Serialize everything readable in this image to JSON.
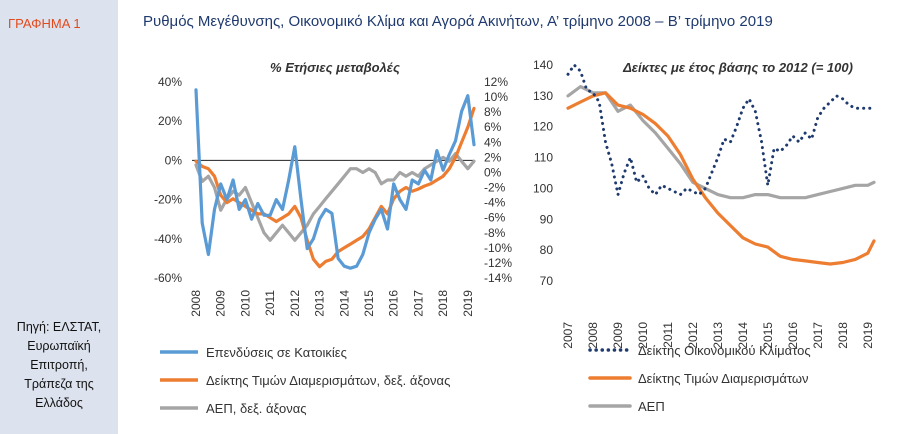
{
  "sidebar": {
    "graph_label": "ΓΡΑΦΗΜΑ 1",
    "source_lines": [
      "Πηγή: ΕΛΣΤΑΤ,",
      "Ευρωπαϊκή",
      "Επιτροπή,",
      "Τράπεζα της",
      "Ελλάδος"
    ]
  },
  "title": "Ρυθμός Μεγέθυνσης, Οικονομικό Κλίμα και Αγορά Ακινήτων, Α’ τρίμηνο 2008 – Β’ τρίμηνο 2019",
  "colors": {
    "blue": "#5b9bd5",
    "orange": "#ed7d31",
    "gray": "#a5a5a5",
    "navy": "#1f3a6e"
  },
  "chart_data": [
    {
      "type": "line",
      "title": "% Ετήσιες μεταβολές",
      "x_tick_labels": [
        "2008",
        "2009",
        "2010",
        "2011",
        "2012",
        "2013",
        "2014",
        "2015",
        "2016",
        "2017",
        "2018",
        "2019"
      ],
      "y_left": {
        "ylim": [
          -60,
          40
        ],
        "ticks": [
          40,
          20,
          0,
          -20,
          -40,
          -60
        ],
        "tick_labels": [
          "40%",
          "20%",
          "0%",
          "-20%",
          "-40%",
          "-60%"
        ]
      },
      "y_right": {
        "ylim": [
          -14,
          12
        ],
        "ticks": [
          12,
          10,
          8,
          6,
          4,
          2,
          0,
          -2,
          -4,
          -6,
          -8,
          -10,
          -12,
          -14
        ],
        "tick_labels": [
          "12%",
          "10%",
          "8%",
          "6%",
          "4%",
          "2%",
          "0%",
          "-2%",
          "-4%",
          "-6%",
          "-8%",
          "-10%",
          "-12%",
          "-14%"
        ]
      },
      "series": [
        {
          "name": "Επενδύσεις σε Κατοικίες",
          "axis": "left",
          "style": "solid",
          "color": "#5b9bd5",
          "x": [
            2008.0,
            2008.25,
            2008.5,
            2008.75,
            2009.0,
            2009.25,
            2009.5,
            2009.75,
            2010.0,
            2010.25,
            2010.5,
            2010.75,
            2011.0,
            2011.25,
            2011.5,
            2011.75,
            2012.0,
            2012.25,
            2012.5,
            2012.75,
            2013.0,
            2013.25,
            2013.5,
            2013.75,
            2014.0,
            2014.25,
            2014.5,
            2014.75,
            2015.0,
            2015.25,
            2015.5,
            2015.75,
            2016.0,
            2016.25,
            2016.5,
            2016.75,
            2017.0,
            2017.25,
            2017.5,
            2017.75,
            2018.0,
            2018.25,
            2018.5,
            2018.75,
            2019.0,
            2019.25
          ],
          "y": [
            36,
            -32,
            -48,
            -25,
            -12,
            -20,
            -10,
            -25,
            -20,
            -30,
            -22,
            -28,
            -28,
            -20,
            -25,
            -10,
            7,
            -20,
            -45,
            -40,
            -30,
            -25,
            -27,
            -50,
            -54,
            -55,
            -54,
            -48,
            -37,
            -30,
            -25,
            -35,
            -12,
            -20,
            -25,
            -10,
            -12,
            -5,
            -10,
            5,
            -5,
            3,
            10,
            25,
            33,
            8
          ]
        },
        {
          "name": "Δείκτης Τιμών Διαμερισμάτων, δεξ. άξονας",
          "axis": "right",
          "style": "solid",
          "color": "#ed7d31",
          "x": [
            2008.0,
            2008.25,
            2008.5,
            2008.75,
            2009.0,
            2009.25,
            2009.5,
            2009.75,
            2010.0,
            2010.25,
            2010.5,
            2010.75,
            2011.0,
            2011.25,
            2011.5,
            2011.75,
            2012.0,
            2012.25,
            2012.5,
            2012.75,
            2013.0,
            2013.25,
            2013.5,
            2013.75,
            2014.0,
            2014.25,
            2014.5,
            2014.75,
            2015.0,
            2015.25,
            2015.5,
            2015.75,
            2016.0,
            2016.25,
            2016.5,
            2016.75,
            2017.0,
            2017.25,
            2017.5,
            2017.75,
            2018.0,
            2018.25,
            2018.5,
            2018.75,
            2019.0,
            2019.25
          ],
          "y": [
            1.5,
            0.8,
            0.5,
            -0.5,
            -3,
            -4,
            -3.5,
            -4,
            -4.5,
            -5,
            -5.5,
            -5.5,
            -6,
            -6.5,
            -6,
            -5.5,
            -4.5,
            -6,
            -9,
            -11.5,
            -12.5,
            -11.8,
            -11.5,
            -10.5,
            -10,
            -9.5,
            -9,
            -8.5,
            -7.5,
            -6,
            -4.5,
            -5.5,
            -3.5,
            -2.5,
            -2,
            -2.5,
            -2.2,
            -1.8,
            -1.5,
            -1,
            -0.5,
            0.5,
            2,
            4,
            6,
            8.5
          ]
        },
        {
          "name": "ΑΕΠ, δεξ. άξονας",
          "axis": "right",
          "style": "solid",
          "color": "#a5a5a5",
          "x": [
            2008.0,
            2008.25,
            2008.5,
            2008.75,
            2009.0,
            2009.25,
            2009.5,
            2009.75,
            2010.0,
            2010.25,
            2010.5,
            2010.75,
            2011.0,
            2011.25,
            2011.5,
            2011.75,
            2012.0,
            2012.25,
            2012.5,
            2012.75,
            2013.0,
            2013.25,
            2013.5,
            2013.75,
            2014.0,
            2014.25,
            2014.5,
            2014.75,
            2015.0,
            2015.25,
            2015.5,
            2015.75,
            2016.0,
            2016.25,
            2016.5,
            2016.75,
            2017.0,
            2017.25,
            2017.5,
            2017.75,
            2018.0,
            2018.25,
            2018.5,
            2018.75,
            2019.0,
            2019.25
          ],
          "y": [
            1,
            -1.2,
            -0.5,
            -2,
            -5,
            -3.5,
            -2.5,
            -3,
            -2,
            -4,
            -6,
            -8,
            -9,
            -8,
            -7,
            -8,
            -9,
            -8,
            -7,
            -5.5,
            -4.5,
            -3.5,
            -2.5,
            -1.5,
            -0.5,
            0.5,
            0.5,
            0,
            0.5,
            0,
            -1.5,
            -1,
            -1,
            0,
            -0.5,
            0,
            -0.5,
            0.5,
            1,
            1.5,
            2,
            1.5,
            2.5,
            1.5,
            0.5,
            1.5
          ]
        }
      ]
    },
    {
      "type": "line",
      "title": "Δείκτες με έτος βάσης το 2012 (= 100)",
      "x_tick_labels": [
        "2007",
        "2008",
        "2009",
        "2010",
        "2011",
        "2012",
        "2013",
        "2014",
        "2015",
        "2016",
        "2017",
        "2018",
        "2019"
      ],
      "y_left": {
        "ylim": [
          70,
          140
        ],
        "ticks": [
          140,
          130,
          120,
          110,
          100,
          90,
          80,
          70
        ],
        "tick_labels": [
          "140",
          "130",
          "120",
          "110",
          "100",
          "90",
          "80",
          "70"
        ]
      },
      "series": [
        {
          "name": "Δείκτης Οικονομικού Κλίματος",
          "style": "dotted",
          "color": "#1f3a6e",
          "x": [
            2007.0,
            2007.25,
            2007.5,
            2007.75,
            2008.0,
            2008.25,
            2008.5,
            2008.75,
            2009.0,
            2009.25,
            2009.5,
            2009.75,
            2010.0,
            2010.25,
            2010.5,
            2010.75,
            2011.0,
            2011.25,
            2011.5,
            2011.75,
            2012.0,
            2012.25,
            2012.5,
            2012.75,
            2013.0,
            2013.25,
            2013.5,
            2013.75,
            2014.0,
            2014.25,
            2014.5,
            2014.75,
            2015.0,
            2015.25,
            2015.5,
            2015.75,
            2016.0,
            2016.25,
            2016.5,
            2016.75,
            2017.0,
            2017.25,
            2017.5,
            2017.75,
            2018.0,
            2018.25,
            2018.5,
            2018.75,
            2019.0,
            2019.25
          ],
          "y": [
            137,
            140,
            138,
            132,
            131,
            128,
            115,
            108,
            98,
            105,
            110,
            102,
            104,
            100,
            98,
            101,
            100,
            99,
            98,
            100,
            99,
            98,
            100,
            105,
            110,
            116,
            115,
            120,
            126,
            129,
            125,
            115,
            101,
            113,
            112,
            114,
            117,
            115,
            118,
            116,
            123,
            126,
            128,
            130,
            129,
            127,
            126,
            126,
            126,
            126
          ]
        },
        {
          "name": "Δείκτης Τιμών Διαμερισμάτων",
          "style": "solid",
          "color": "#ed7d31",
          "x": [
            2007.0,
            2007.5,
            2008.0,
            2008.5,
            2009.0,
            2009.5,
            2010.0,
            2010.5,
            2011.0,
            2011.5,
            2012.0,
            2012.5,
            2013.0,
            2013.5,
            2014.0,
            2014.5,
            2015.0,
            2015.5,
            2016.0,
            2016.5,
            2017.0,
            2017.5,
            2018.0,
            2018.5,
            2019.0,
            2019.25
          ],
          "y": [
            126,
            128,
            130,
            131,
            127,
            126,
            124,
            121,
            117,
            111,
            103,
            97,
            92,
            88,
            84,
            82,
            81,
            78,
            77,
            76.5,
            76,
            75.5,
            76,
            77,
            79,
            83
          ]
        },
        {
          "name": "ΑΕΠ",
          "style": "solid",
          "color": "#a5a5a5",
          "x": [
            2007.0,
            2007.5,
            2008.0,
            2008.5,
            2009.0,
            2009.5,
            2010.0,
            2010.5,
            2011.0,
            2011.5,
            2012.0,
            2012.5,
            2013.0,
            2013.5,
            2014.0,
            2014.5,
            2015.0,
            2015.5,
            2016.0,
            2016.5,
            2017.0,
            2017.5,
            2018.0,
            2018.5,
            2019.0,
            2019.25
          ],
          "y": [
            130,
            133,
            131,
            131,
            125,
            127,
            122,
            118,
            113,
            108,
            102,
            100,
            98,
            97,
            97,
            98,
            98,
            97,
            97,
            97,
            98,
            99,
            100,
            101,
            101,
            102
          ]
        }
      ]
    }
  ]
}
